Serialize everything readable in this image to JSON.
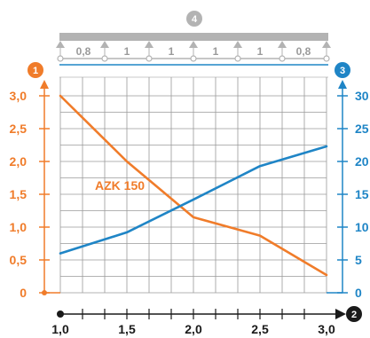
{
  "chart_data": {
    "type": "line",
    "x_ticks": [
      "1,0",
      "1,5",
      "2,0",
      "2,5",
      "3,0"
    ],
    "xlim": [
      1.0,
      3.0
    ],
    "y_left": {
      "ticks": [
        "0",
        "0,5",
        "1,0",
        "1,5",
        "2,0",
        "2,5",
        "3,0"
      ],
      "ylim": [
        0,
        3.0
      ],
      "color": "#f07c2a"
    },
    "y_right": {
      "ticks": [
        "0",
        "5",
        "10",
        "15",
        "20",
        "25",
        "30"
      ],
      "ylim": [
        0,
        30
      ],
      "color": "#1f85c6"
    },
    "series": [
      {
        "name": "AZK 150",
        "axis": "left",
        "color": "#f07c2a",
        "x": [
          1.0,
          1.5,
          2.0,
          2.5,
          3.0
        ],
        "y": [
          3.0,
          2.0,
          1.15,
          0.87,
          0.27
        ]
      },
      {
        "axis": "right",
        "color": "#1f85c6",
        "x": [
          1.0,
          1.5,
          2.0,
          2.5,
          3.0
        ],
        "y": [
          6,
          9.2,
          14.2,
          19.3,
          22.3
        ]
      }
    ],
    "badges": {
      "left_axis": "1",
      "x_axis": "2",
      "right_axis": "3",
      "support_diagram": "4"
    },
    "span_labels": [
      "0,8",
      "1",
      "1",
      "1",
      "1",
      "0,8"
    ],
    "grid": true
  }
}
